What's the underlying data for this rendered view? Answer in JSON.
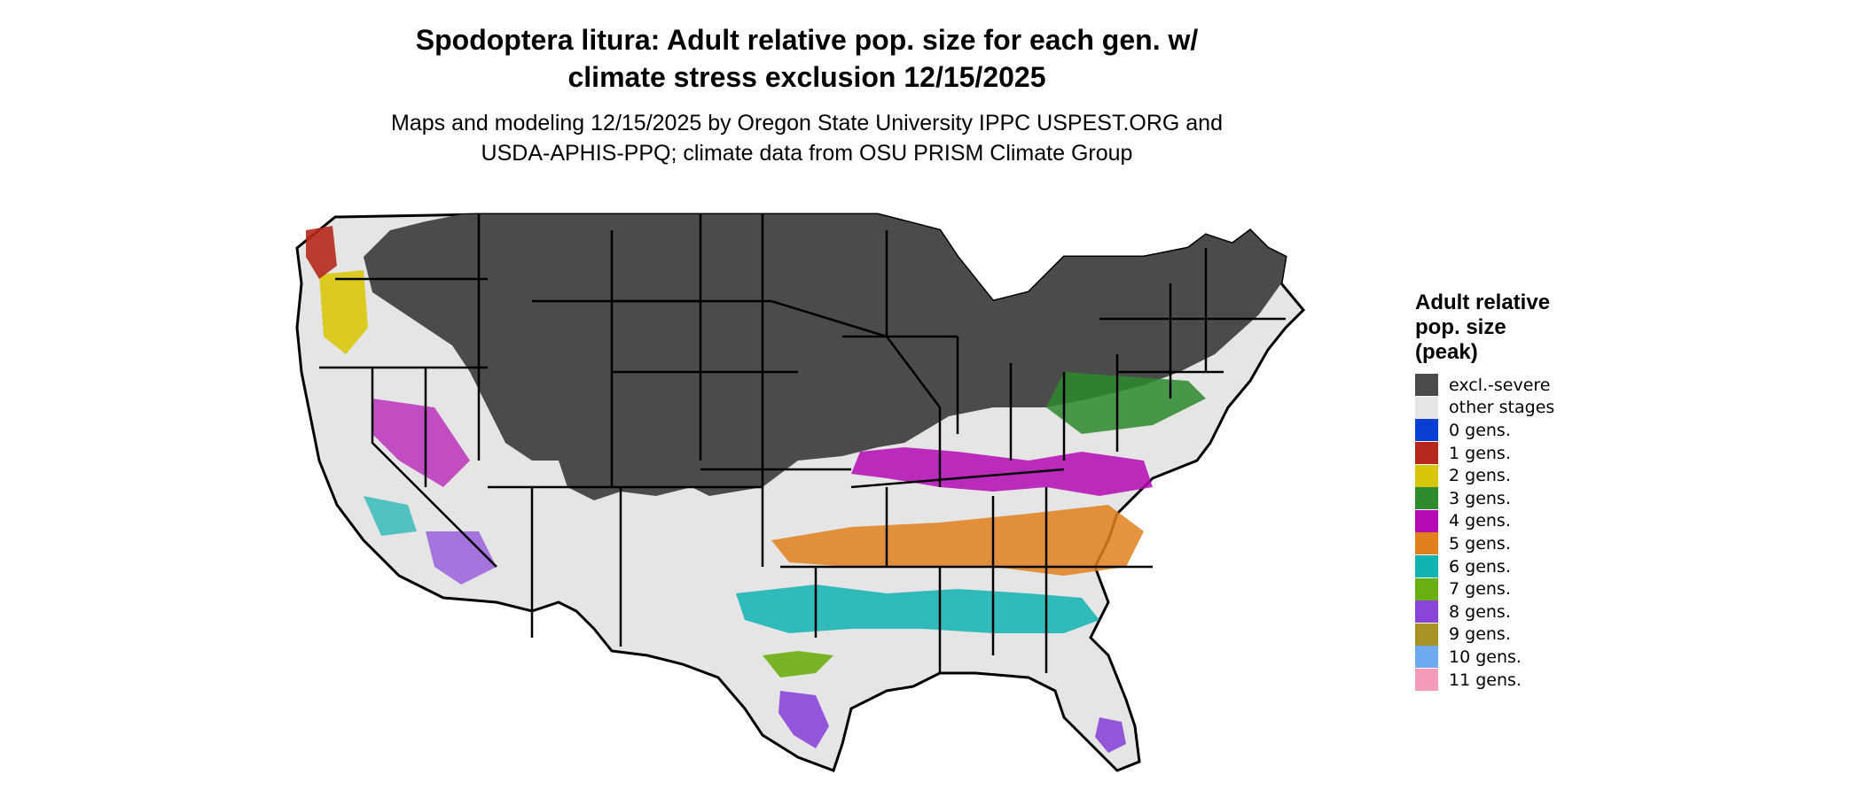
{
  "map": {
    "title_line1": "Spodoptera litura: Adult relative pop. size for each gen. w/",
    "title_line2": "climate stress exclusion 12/15/2025",
    "subtitle_line1": "Maps and modeling 12/15/2025 by Oregon State University IPPC USPEST.ORG and",
    "subtitle_line2": "USDA-APHIS-PPQ; climate data from OSU PRISM Climate Group"
  },
  "legend": {
    "title_line1": "Adult relative",
    "title_line2": "pop. size",
    "title_line3": "(peak)",
    "items": [
      {
        "label": "excl.-severe",
        "color": "#4b4b4b"
      },
      {
        "label": "other stages",
        "color": "#e5e5e5"
      },
      {
        "label": "0 gens.",
        "color": "#0a3fd6"
      },
      {
        "label": "1 gens.",
        "color": "#b5281b"
      },
      {
        "label": "2 gens.",
        "color": "#d8c60c"
      },
      {
        "label": "3 gens.",
        "color": "#2d8a2d"
      },
      {
        "label": "4 gens.",
        "color": "#b40bb4"
      },
      {
        "label": "5 gens.",
        "color": "#e2801e"
      },
      {
        "label": "6 gens.",
        "color": "#11b3b3"
      },
      {
        "label": "7 gens.",
        "color": "#6aaf12"
      },
      {
        "label": "8 gens.",
        "color": "#8a45d8"
      },
      {
        "label": "9 gens.",
        "color": "#a89224"
      },
      {
        "label": "10 gens.",
        "color": "#6daaf0"
      },
      {
        "label": "11 gens.",
        "color": "#f39bb8"
      }
    ]
  }
}
